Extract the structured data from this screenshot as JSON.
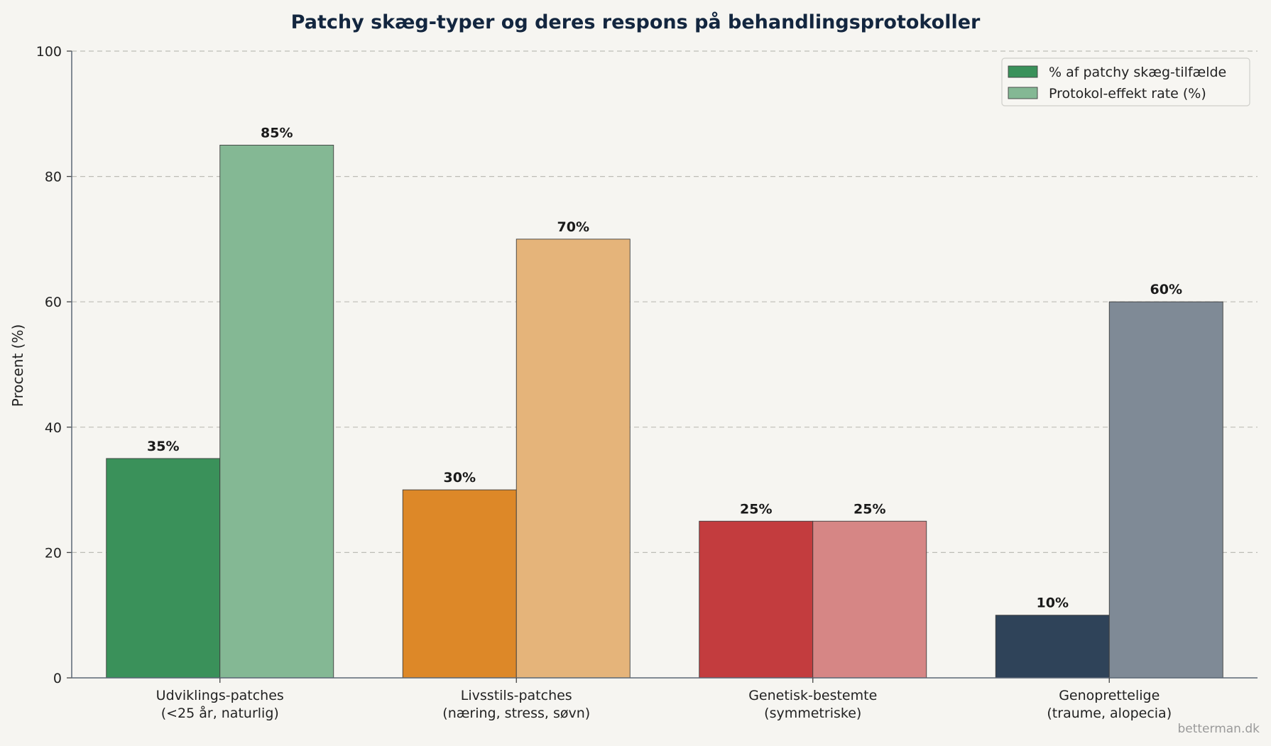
{
  "chart_data": {
    "type": "bar",
    "title": "Patchy skæg-typer og deres respons på behandlingsprotokoller",
    "ylabel": "Procent (%)",
    "xlabel": "",
    "ylim": [
      0,
      100
    ],
    "yticks": [
      "0",
      "20",
      "40",
      "60",
      "80",
      "100"
    ],
    "grid": true,
    "legend_position": "top-right",
    "categories": [
      [
        "Udviklings-patches",
        "(<25 år, naturlig)"
      ],
      [
        "Livsstils-patches",
        "(næring, stress, søvn)"
      ],
      [
        "Genetisk-bestemte",
        "(symmetriske)"
      ],
      [
        "Genoprettelige",
        "(traume, alopecia)"
      ]
    ],
    "series": [
      {
        "name": "% af patchy skæg-tilfælde",
        "values": [
          35,
          30,
          25,
          10
        ],
        "labels": [
          "35%",
          "30%",
          "25%",
          "10%"
        ],
        "colors": [
          "#3a915a",
          "#dd8828",
          "#c33c3e",
          "#2f4359"
        ],
        "legend_color": "#3a915a"
      },
      {
        "name": "Protokol-effekt rate (%)",
        "values": [
          85,
          70,
          25,
          60
        ],
        "labels": [
          "85%",
          "70%",
          "25%",
          "60%"
        ],
        "colors": [
          "#84b894",
          "#e5b47a",
          "#d68685",
          "#7f8a96"
        ],
        "legend_color": "#84b894"
      }
    ]
  },
  "footer": {
    "source": "betterman.dk"
  }
}
